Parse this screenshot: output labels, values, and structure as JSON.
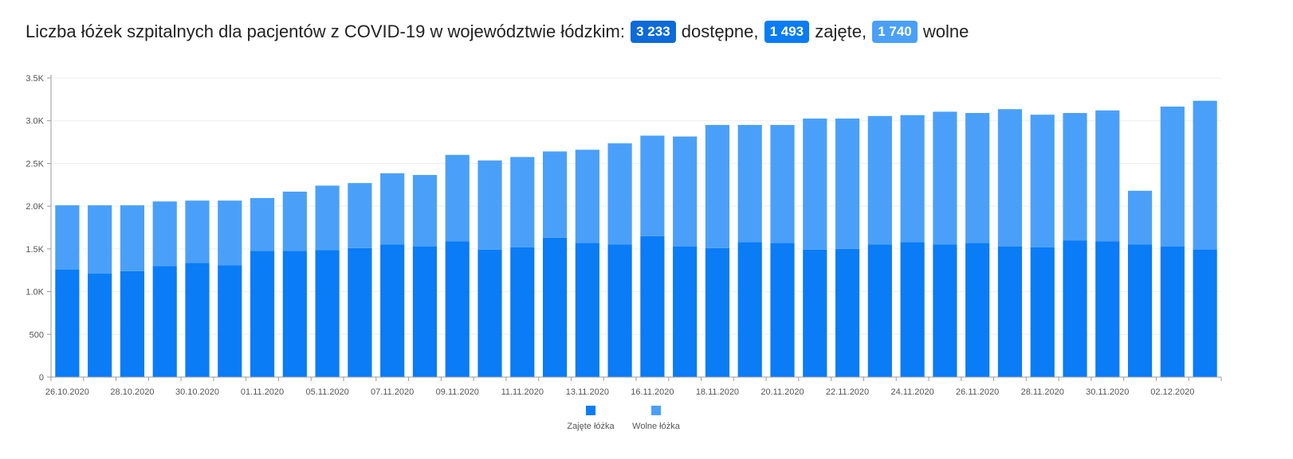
{
  "header": {
    "prefix": "Liczba łóżek szpitalnych dla pacjentów z COVID-19 w województwie łódzkim:",
    "available_value": "3 233",
    "available_label": "dostępne,",
    "occupied_value": "1 493",
    "occupied_label": "zajęte,",
    "free_value": "1 740",
    "free_label": "wolne"
  },
  "colors": {
    "available_badge": "#0d6ad8",
    "occupied": "#0a7cf6",
    "free": "#4aa0f8",
    "axis": "#999999",
    "grid": "#eeeeee"
  },
  "chart_data": {
    "type": "bar",
    "stacked": true,
    "categories": [
      "26.10.2020",
      "27.10.2020",
      "28.10.2020",
      "29.10.2020",
      "30.10.2020",
      "31.10.2020",
      "01.11.2020",
      "02.11.2020",
      "05.11.2020",
      "06.11.2020",
      "07.11.2020",
      "08.11.2020",
      "09.11.2020",
      "10.11.2020",
      "11.11.2020",
      "12.11.2020",
      "13.11.2020",
      "14.11.2020",
      "16.11.2020",
      "17.11.2020",
      "18.11.2020",
      "19.11.2020",
      "20.11.2020",
      "21.11.2020",
      "22.11.2020",
      "23.11.2020",
      "24.11.2020",
      "25.11.2020",
      "26.11.2020",
      "27.11.2020",
      "28.11.2020",
      "29.11.2020",
      "30.11.2020",
      "01.12.2020",
      "02.12.2020",
      "03.12.2020"
    ],
    "x_tick_labels": [
      {
        "index": 0,
        "label": "26.10.2020"
      },
      {
        "index": 2,
        "label": "28.10.2020"
      },
      {
        "index": 4,
        "label": "30.10.2020"
      },
      {
        "index": 6,
        "label": "01.11.2020"
      },
      {
        "index": 8,
        "label": "05.11.2020"
      },
      {
        "index": 10,
        "label": "07.11.2020"
      },
      {
        "index": 12,
        "label": "09.11.2020"
      },
      {
        "index": 14,
        "label": "11.11.2020"
      },
      {
        "index": 16,
        "label": "13.11.2020"
      },
      {
        "index": 18,
        "label": "16.11.2020"
      },
      {
        "index": 20,
        "label": "18.11.2020"
      },
      {
        "index": 22,
        "label": "20.11.2020"
      },
      {
        "index": 24,
        "label": "22.11.2020"
      },
      {
        "index": 26,
        "label": "24.11.2020"
      },
      {
        "index": 28,
        "label": "26.11.2020"
      },
      {
        "index": 30,
        "label": "28.11.2020"
      },
      {
        "index": 32,
        "label": "30.11.2020"
      },
      {
        "index": 34,
        "label": "02.12.2020"
      }
    ],
    "series": [
      {
        "name": "Zajęte łóżka",
        "color": "#0a7cf6",
        "values": [
          1260,
          1210,
          1240,
          1300,
          1335,
          1310,
          1475,
          1475,
          1485,
          1510,
          1550,
          1530,
          1590,
          1490,
          1520,
          1630,
          1570,
          1550,
          1650,
          1530,
          1510,
          1580,
          1570,
          1490,
          1500,
          1550,
          1580,
          1550,
          1570,
          1530,
          1520,
          1600,
          1590,
          1550,
          1530,
          1493
        ]
      },
      {
        "name": "Wolne łóżka",
        "color": "#4aa0f8",
        "values": [
          750,
          800,
          770,
          755,
          730,
          755,
          620,
          695,
          755,
          760,
          835,
          835,
          1010,
          1045,
          1055,
          1010,
          1090,
          1185,
          1175,
          1285,
          1440,
          1370,
          1380,
          1535,
          1525,
          1505,
          1485,
          1555,
          1520,
          1605,
          1550,
          1490,
          1530,
          630,
          1635,
          1740
        ]
      }
    ],
    "ylim": [
      0,
      3500
    ],
    "y_ticks": [
      {
        "value": 0,
        "label": "0"
      },
      {
        "value": 500,
        "label": "500"
      },
      {
        "value": 1000,
        "label": "1.0K"
      },
      {
        "value": 1500,
        "label": "1.5K"
      },
      {
        "value": 2000,
        "label": "2.0K"
      },
      {
        "value": 2500,
        "label": "2.5K"
      },
      {
        "value": 3000,
        "label": "3.0K"
      },
      {
        "value": 3500,
        "label": "3.5K"
      }
    ],
    "grid": true,
    "legend_position": "bottom-center",
    "title": "",
    "xlabel": "",
    "ylabel": ""
  }
}
